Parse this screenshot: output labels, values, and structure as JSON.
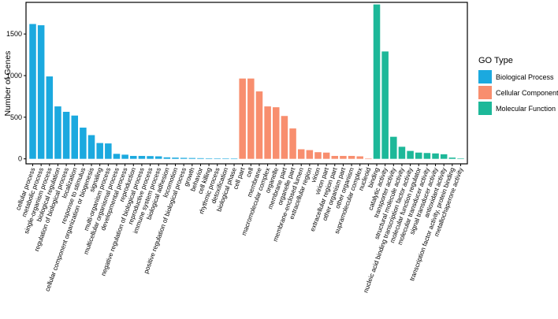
{
  "chart_data": {
    "type": "bar",
    "ylabel": "Number of Genes",
    "xlabel": "",
    "ylim": [
      -60,
      1880
    ],
    "yticks": [
      0,
      500,
      1000,
      1500
    ],
    "grid": false,
    "legend": {
      "title": "GO Type",
      "placement": "right",
      "entries": [
        {
          "name": "Biological Process",
          "color": "#1ba9df"
        },
        {
          "name": "Cellular Component",
          "color": "#f88e6e"
        },
        {
          "name": "Molecular Function",
          "color": "#1db899"
        }
      ]
    },
    "groups": [
      {
        "name": "Biological Process",
        "color": "#1ba9df",
        "categories": [
          "cellular process",
          "metabolic process",
          "single-organism process",
          "biological regulation",
          "regulation of biological process",
          "localization",
          "response to stimulus",
          "cellular component organization or biogenesis",
          "signaling",
          "multi-organism process",
          "multicellular organismal process",
          "developmental process",
          "reproduction",
          "negative regulation of biological process",
          "reproductive process",
          "immune system process",
          "biological adhesion",
          "locomotion",
          "positive regulation of biological process",
          "growth",
          "behavior",
          "cell killing",
          "rhythmic process",
          "detoxification",
          "biological phase"
        ],
        "values": [
          1620,
          1605,
          990,
          630,
          565,
          520,
          375,
          285,
          190,
          185,
          60,
          50,
          35,
          35,
          33,
          30,
          18,
          15,
          12,
          10,
          8,
          6,
          4,
          3,
          2
        ]
      },
      {
        "name": "Cellular Component",
        "color": "#f88e6e",
        "categories": [
          "cell part",
          "cell",
          "membrane",
          "macromolecular complex",
          "organelle",
          "membrane part",
          "organelle part",
          "membrane-enclosed lumen",
          "extracellular region",
          "virion",
          "virion part",
          "extracellular region part",
          "other organism part",
          "other organism",
          "supramolecular complex",
          "nucleoid"
        ],
        "values": [
          965,
          965,
          810,
          630,
          620,
          515,
          365,
          115,
          105,
          80,
          75,
          35,
          35,
          35,
          30,
          2
        ]
      },
      {
        "name": "Molecular Function",
        "color": "#1db899",
        "categories": [
          "binding",
          "catalytic activity",
          "transporter activity",
          "structural molecule activity",
          "nucleic acid binding transcription factor activity",
          "molecular function regulator",
          "molecular transducer activity",
          "signal transducer activity",
          "antioxidant activity",
          "transcription factor activity, protein binding",
          "metallochaperone activity"
        ],
        "values": [
          1855,
          1290,
          265,
          145,
          95,
          75,
          70,
          65,
          55,
          15,
          3
        ]
      }
    ]
  }
}
